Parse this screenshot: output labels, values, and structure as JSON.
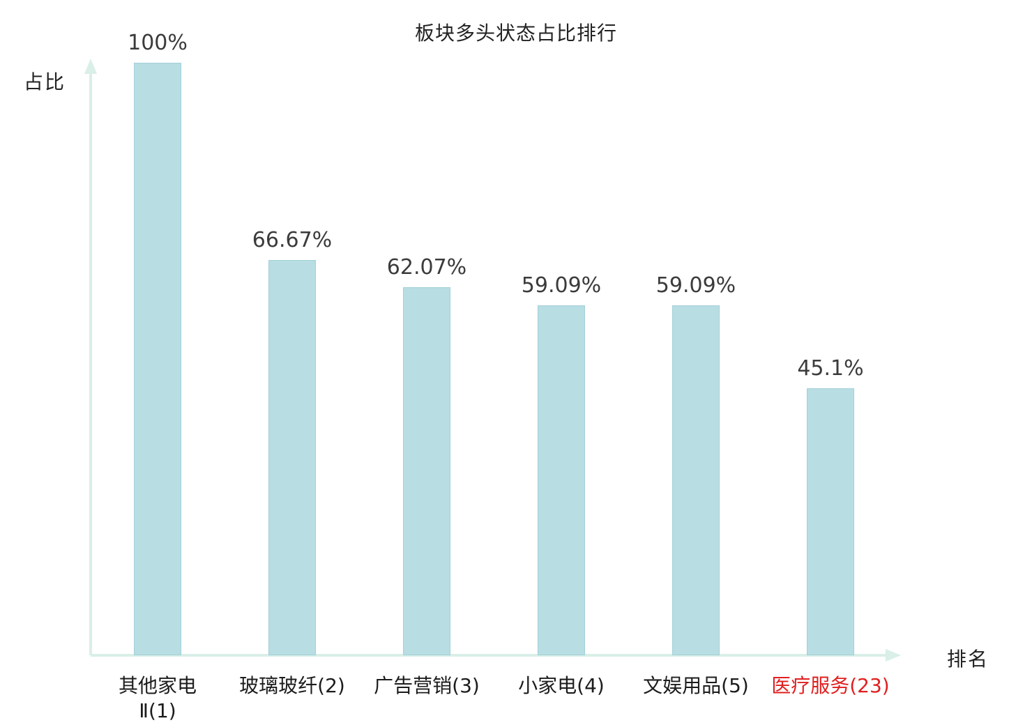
{
  "title": "板块多头状态占比排行",
  "y_axis_label": "占比",
  "x_axis_label": "排名",
  "colors": {
    "bar_fill": "#b8dde3",
    "bar_border": "#a3d0d8",
    "axis": "#d9efe7",
    "value_text": "#3b3b3b",
    "category_text": "#1c1c1c",
    "highlight_text": "#e01f1f"
  },
  "chart_data": {
    "type": "bar",
    "title": "板块多头状态占比排行",
    "xlabel": "排名",
    "ylabel": "占比",
    "ylim": [
      0,
      100
    ],
    "grid": false,
    "legend": "none",
    "categories": [
      "其他家电\nⅡ(1)",
      "玻璃玻纤(2)",
      "广告营销(3)",
      "小家电(4)",
      "文娱用品(5)",
      "医疗服务(23)"
    ],
    "values": [
      100,
      66.67,
      62.07,
      59.09,
      59.09,
      45.1
    ],
    "value_labels": [
      "100%",
      "66.67%",
      "62.07%",
      "59.09%",
      "59.09%",
      "45.1%"
    ],
    "highlight_index": 5
  }
}
